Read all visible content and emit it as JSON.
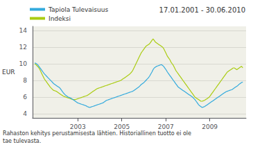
{
  "chart_data": {
    "type": "line",
    "title": "17.01.2001 - 30.06.2010",
    "ylabel": "EUR",
    "footnote": "Rahaston kehitys perustamisesta lähtien. Historiallinen tuotto ei ole\ntae tulevasta.",
    "x": [
      2001.04,
      2001.0944,
      2001.1487,
      2001.2031,
      2001.2575,
      2001.3118,
      2001.3662,
      2001.4206,
      2001.4749,
      2001.5293,
      2001.5837,
      2001.638,
      2001.6924,
      2001.7468,
      2001.8011,
      2001.8555,
      2001.9099,
      2001.9643,
      2002.0186,
      2002.073,
      2002.1274,
      2002.1817,
      2002.2361,
      2002.2905,
      2002.3448,
      2002.3992,
      2002.4536,
      2002.5079,
      2002.5623,
      2002.6167,
      2002.671,
      2002.7254,
      2002.7798,
      2002.8341,
      2002.8885,
      2002.9429,
      2002.9972,
      2003.0516,
      2003.106,
      2003.1603,
      2003.2147,
      2003.2691,
      2003.3234,
      2003.3778,
      2003.4322,
      2003.4866,
      2003.5409,
      2003.5953,
      2003.6497,
      2003.704,
      2003.7584,
      2003.8128,
      2003.8671,
      2003.9215,
      2003.9759,
      2004.0302,
      2004.0846,
      2004.139,
      2004.1933,
      2004.2477,
      2004.3021,
      2004.3564,
      2004.4108,
      2004.4652,
      2004.5195,
      2004.5739,
      2004.6283,
      2004.6826,
      2004.737,
      2004.7914,
      2004.8457,
      2004.9001,
      2004.9545,
      2005.0089,
      2005.0632,
      2005.1176,
      2005.172,
      2005.2263,
      2005.2807,
      2005.3351,
      2005.3894,
      2005.4438,
      2005.4982,
      2005.5525,
      2005.6069,
      2005.6613,
      2005.7156,
      2005.77,
      2005.8244,
      2005.8787,
      2005.9331,
      2005.9875,
      2006.0418,
      2006.0962,
      2006.1506,
      2006.2049,
      2006.2593,
      2006.3137,
      2006.368,
      2006.4224,
      2006.4768,
      2006.5311,
      2006.5855,
      2006.6399,
      2006.6943,
      2006.7486,
      2006.803,
      2006.8574,
      2006.9117,
      2006.9661,
      2007.0205,
      2007.0748,
      2007.1292,
      2007.1836,
      2007.2379,
      2007.2923,
      2007.3467,
      2007.401,
      2007.4554,
      2007.5098,
      2007.5641,
      2007.6185,
      2007.6729,
      2007.7272,
      2007.7816,
      2007.836,
      2007.8903,
      2007.9447,
      2007.9991,
      2008.0534,
      2008.1078,
      2008.1622,
      2008.2166,
      2008.2709,
      2008.3253,
      2008.3797,
      2008.434,
      2008.4884,
      2008.5428,
      2008.5971,
      2008.6515,
      2008.7059,
      2008.7602,
      2008.8146,
      2008.869,
      2008.9233,
      2008.9777,
      2009.0321,
      2009.0864,
      2009.1408,
      2009.1952,
      2009.2495,
      2009.3039,
      2009.3583,
      2009.4126,
      2009.467,
      2009.5214,
      2009.5757,
      2009.6301,
      2009.6845,
      2009.7389,
      2009.7932,
      2009.8476,
      2009.902,
      2009.9563,
      2010.0107,
      2010.0651,
      2010.1194,
      2010.1738,
      2010.2282,
      2010.2825,
      2010.3369,
      2010.3913,
      2010.4456,
      2010.5
    ],
    "series": [
      {
        "name": "Tapiola Tulevaisuus",
        "color": "#33aadd",
        "values": [
          10.1,
          10.05,
          9.95,
          9.8,
          9.6,
          9.4,
          9.2,
          9.0,
          8.8,
          8.65,
          8.5,
          8.35,
          8.2,
          8.05,
          7.9,
          7.75,
          7.6,
          7.5,
          7.4,
          7.3,
          7.2,
          7.1,
          6.9,
          6.7,
          6.5,
          6.35,
          6.2,
          6.1,
          6.0,
          5.95,
          5.9,
          5.8,
          5.7,
          5.6,
          5.5,
          5.4,
          5.3,
          5.25,
          5.2,
          5.15,
          5.1,
          5.05,
          5.0,
          4.95,
          4.85,
          4.8,
          4.75,
          4.8,
          4.85,
          4.9,
          4.95,
          5.0,
          5.05,
          5.1,
          5.15,
          5.2,
          5.25,
          5.3,
          5.4,
          5.5,
          5.6,
          5.65,
          5.7,
          5.75,
          5.8,
          5.85,
          5.9,
          5.95,
          6.0,
          6.05,
          6.1,
          6.15,
          6.2,
          6.25,
          6.3,
          6.35,
          6.4,
          6.45,
          6.5,
          6.55,
          6.6,
          6.65,
          6.7,
          6.8,
          6.9,
          7.0,
          7.1,
          7.2,
          7.35,
          7.5,
          7.6,
          7.7,
          7.85,
          8.0,
          8.15,
          8.3,
          8.5,
          8.75,
          9.0,
          9.3,
          9.5,
          9.6,
          9.7,
          9.75,
          9.8,
          9.85,
          9.9,
          9.8,
          9.65,
          9.45,
          9.25,
          9.0,
          8.8,
          8.6,
          8.4,
          8.2,
          8.0,
          7.8,
          7.6,
          7.4,
          7.2,
          7.1,
          7.0,
          6.9,
          6.8,
          6.7,
          6.6,
          6.5,
          6.4,
          6.3,
          6.2,
          6.1,
          6.0,
          5.85,
          5.7,
          5.5,
          5.3,
          5.1,
          4.95,
          4.85,
          4.75,
          4.8,
          4.85,
          4.95,
          5.05,
          5.15,
          5.25,
          5.35,
          5.45,
          5.55,
          5.65,
          5.75,
          5.85,
          5.95,
          6.05,
          6.15,
          6.25,
          6.35,
          6.45,
          6.55,
          6.65,
          6.7,
          6.75,
          6.8,
          6.85,
          6.9,
          7.0,
          7.1,
          7.2,
          7.3,
          7.4,
          7.55,
          7.65,
          7.75,
          7.8
        ]
      },
      {
        "name": "Indeksi",
        "color": "#aacc11",
        "values": [
          10.0,
          9.9,
          9.75,
          9.6,
          9.4,
          9.1,
          8.8,
          8.5,
          8.2,
          8.0,
          7.8,
          7.6,
          7.4,
          7.2,
          7.05,
          6.9,
          6.8,
          6.75,
          6.7,
          6.6,
          6.5,
          6.4,
          6.3,
          6.2,
          6.1,
          6.05,
          6.0,
          5.95,
          5.9,
          5.85,
          5.8,
          5.75,
          5.7,
          5.7,
          5.7,
          5.75,
          5.8,
          5.85,
          5.9,
          5.95,
          6.0,
          6.05,
          6.1,
          6.15,
          6.2,
          6.3,
          6.4,
          6.5,
          6.6,
          6.7,
          6.8,
          6.9,
          7.0,
          7.05,
          7.1,
          7.15,
          7.2,
          7.25,
          7.3,
          7.35,
          7.4,
          7.45,
          7.5,
          7.55,
          7.6,
          7.65,
          7.7,
          7.75,
          7.8,
          7.85,
          7.9,
          7.95,
          8.0,
          8.1,
          8.2,
          8.3,
          8.4,
          8.5,
          8.6,
          8.7,
          8.85,
          9.0,
          9.2,
          9.5,
          9.8,
          10.1,
          10.4,
          10.7,
          11.0,
          11.3,
          11.5,
          11.7,
          11.9,
          12.1,
          12.2,
          12.3,
          12.4,
          12.6,
          12.8,
          13.0,
          12.8,
          12.6,
          12.5,
          12.4,
          12.3,
          12.2,
          12.1,
          12.0,
          11.8,
          11.5,
          11.2,
          10.9,
          10.7,
          10.5,
          10.2,
          10.0,
          9.8,
          9.5,
          9.2,
          9.0,
          8.8,
          8.6,
          8.4,
          8.2,
          8.0,
          7.8,
          7.6,
          7.4,
          7.2,
          7.0,
          6.8,
          6.6,
          6.4,
          6.2,
          6.0,
          5.9,
          5.8,
          5.7,
          5.6,
          5.5,
          5.5,
          5.55,
          5.6,
          5.7,
          5.8,
          5.9,
          6.0,
          6.2,
          6.4,
          6.6,
          6.8,
          7.0,
          7.2,
          7.4,
          7.6,
          7.8,
          8.0,
          8.2,
          8.4,
          8.6,
          8.8,
          9.0,
          9.1,
          9.2,
          9.3,
          9.4,
          9.5,
          9.5,
          9.4,
          9.3,
          9.4,
          9.5,
          9.6,
          9.7,
          9.5
        ]
      }
    ],
    "xlim": [
      2000.94,
      2010.65
    ],
    "xticks": [
      2003,
      2005,
      2007,
      2009
    ],
    "ylim": [
      3.5,
      14.5
    ],
    "yticks": [
      4,
      6,
      8,
      10,
      12,
      14
    ],
    "grid": true,
    "legend": "upper left"
  }
}
